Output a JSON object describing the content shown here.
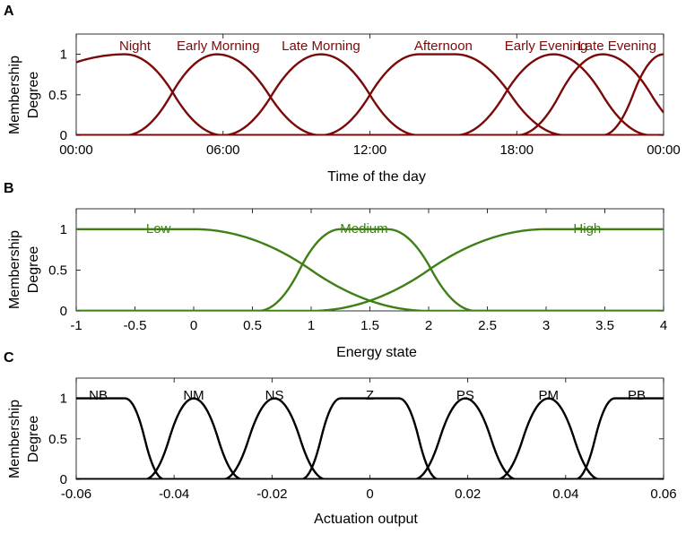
{
  "chart_data": [
    {
      "type": "line",
      "panel": "A",
      "xlabel": "Time of the day",
      "ylabel_line1": "Membership",
      "ylabel_line2": "Degree",
      "xlim": [
        0,
        24
      ],
      "ylim": [
        0,
        1.25
      ],
      "xticks": [
        0,
        6,
        12,
        18,
        24
      ],
      "xtick_labels": [
        "00:00",
        "06:00",
        "12:00",
        "18:00",
        "00:00"
      ],
      "yticks": [
        0,
        0.5,
        1
      ],
      "ytick_labels": [
        "0",
        "0.5",
        "1"
      ],
      "color": "#7a0a0a",
      "series": [
        {
          "name": "Night",
          "shape": "pi",
          "a": -7,
          "b": 2,
          "c": 2,
          "d": 6,
          "label_x": 2.4
        },
        {
          "name": "Early Morning",
          "shape": "pi",
          "a": 2,
          "b": 5.75,
          "c": 5.75,
          "d": 10,
          "label_x": 5.8
        },
        {
          "name": "Late Morning",
          "shape": "pi",
          "a": 6,
          "b": 10,
          "c": 10,
          "d": 14,
          "label_x": 10.0
        },
        {
          "name": "Afternoon",
          "shape": "pi",
          "a": 10,
          "b": 14,
          "c": 15.5,
          "d": 20,
          "label_x": 15.0
        },
        {
          "name": "Early Evening",
          "shape": "pi",
          "a": 15.5,
          "b": 19.5,
          "c": 19.5,
          "d": 23.5,
          "label_x": 19.2
        },
        {
          "name": "Late Evening",
          "shape": "pi",
          "a": 18,
          "b": 21.5,
          "c": 21.5,
          "d": 25.5,
          "label_x": 22.1
        },
        {
          "name": "",
          "shape": "pi",
          "a": 21.5,
          "b": 24,
          "c": 24,
          "d": 28,
          "label_x": 24
        }
      ]
    },
    {
      "type": "line",
      "panel": "B",
      "xlabel": "Energy state",
      "ylabel_line1": "Membership",
      "ylabel_line2": "Degree",
      "xlim": [
        -1,
        4
      ],
      "ylim": [
        0,
        1.25
      ],
      "xticks": [
        -1,
        -0.5,
        0,
        0.5,
        1,
        1.5,
        2,
        2.5,
        3,
        3.5,
        4
      ],
      "xtick_labels": [
        "-1",
        "-0.5",
        "0",
        "0.5",
        "1",
        "1.5",
        "2",
        "2.5",
        "3",
        "3.5",
        "4"
      ],
      "yticks": [
        0,
        0.5,
        1
      ],
      "ytick_labels": [
        "0",
        "0.5",
        "1"
      ],
      "color": "#3f7f17",
      "series": [
        {
          "name": "Low",
          "shape": "pi",
          "a": -4,
          "b": -1,
          "c": 0,
          "d": 2,
          "label_x": -0.3
        },
        {
          "name": "Medium",
          "shape": "pi",
          "a": 0.55,
          "b": 1.25,
          "c": 1.65,
          "d": 2.4,
          "label_x": 1.45
        },
        {
          "name": "High",
          "shape": "pi",
          "a": 1,
          "b": 3,
          "c": 4,
          "d": 7,
          "label_x": 3.35
        }
      ]
    },
    {
      "type": "line",
      "panel": "C",
      "xlabel": "Actuation output",
      "ylabel_line1": "Membership",
      "ylabel_line2": "Degree",
      "xlim": [
        -0.06,
        0.06
      ],
      "ylim": [
        0,
        1.25
      ],
      "xticks": [
        -0.06,
        -0.04,
        -0.02,
        0,
        0.02,
        0.04,
        0.06
      ],
      "xtick_labels": [
        "-0.06",
        "-0.04",
        "-0.02",
        "0",
        "0.02",
        "0.04",
        "0.06"
      ],
      "yticks": [
        0,
        0.5,
        1
      ],
      "ytick_labels": [
        "0",
        "0.5",
        "1"
      ],
      "color": "#000000",
      "series": [
        {
          "name": "NB",
          "shape": "pi",
          "a": -0.08,
          "b": -0.06,
          "c": -0.05,
          "d": -0.042,
          "label_x": -0.0555
        },
        {
          "name": "NM",
          "shape": "pi",
          "a": -0.046,
          "b": -0.036,
          "c": -0.036,
          "d": -0.026,
          "label_x": -0.036
        },
        {
          "name": "NS",
          "shape": "pi",
          "a": -0.03,
          "b": -0.0195,
          "c": -0.0195,
          "d": -0.009,
          "label_x": -0.0195
        },
        {
          "name": "Z",
          "shape": "pi",
          "a": -0.014,
          "b": -0.006,
          "c": 0.006,
          "d": 0.014,
          "label_x": 0.0
        },
        {
          "name": "PS",
          "shape": "pi",
          "a": 0.009,
          "b": 0.0195,
          "c": 0.0195,
          "d": 0.03,
          "label_x": 0.0195
        },
        {
          "name": "PM",
          "shape": "pi",
          "a": 0.026,
          "b": 0.0365,
          "c": 0.0365,
          "d": 0.047,
          "label_x": 0.0365
        },
        {
          "name": "PB",
          "shape": "pi",
          "a": 0.042,
          "b": 0.05,
          "c": 0.06,
          "d": 0.08,
          "label_x": 0.0545
        }
      ]
    }
  ]
}
